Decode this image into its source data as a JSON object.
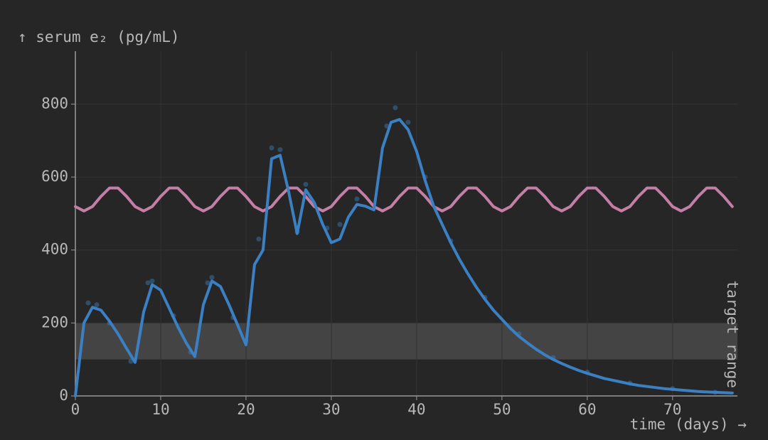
{
  "chart_data": {
    "type": "line",
    "y_label": "↑ serum e₂ (pg/mL)",
    "x_label": "time (days) →",
    "xlim": [
      0,
      77.6
    ],
    "ylim": [
      0,
      945
    ],
    "xticks": [
      0,
      10,
      20,
      30,
      40,
      50,
      60,
      70
    ],
    "yticks": [
      0,
      200,
      400,
      600,
      800
    ],
    "grid": true,
    "band": {
      "from": 100,
      "to": 200,
      "label": "target range",
      "color": "#4a4a4a"
    },
    "x": [
      0,
      1,
      2,
      3,
      4,
      5,
      6,
      7,
      8,
      9,
      10,
      11,
      12,
      13,
      14,
      15,
      16,
      17,
      18,
      19,
      20,
      21,
      22,
      23,
      24,
      25,
      26,
      27,
      28,
      29,
      30,
      31,
      32,
      33,
      34,
      35,
      36,
      37,
      38,
      39,
      40,
      41,
      42,
      43,
      44,
      45,
      46,
      47,
      48,
      49,
      50,
      51,
      52,
      53,
      54,
      55,
      56,
      57,
      58,
      59,
      60,
      61,
      62,
      63,
      64,
      65,
      66,
      67,
      68,
      69,
      70,
      71,
      72,
      73,
      74,
      75,
      76,
      77
    ],
    "series": [
      {
        "color": "#c47fa6",
        "values": [
          519,
          507,
          519,
          547,
          570,
          570,
          547,
          519,
          507,
          519,
          547,
          570,
          570,
          547,
          519,
          507,
          519,
          547,
          570,
          570,
          547,
          519,
          507,
          519,
          547,
          570,
          570,
          547,
          519,
          507,
          519,
          547,
          570,
          570,
          547,
          519,
          507,
          519,
          547,
          570,
          570,
          547,
          519,
          507,
          519,
          547,
          570,
          570,
          547,
          519,
          507,
          519,
          547,
          570,
          570,
          547,
          519,
          507,
          519,
          547,
          570,
          570,
          547,
          519,
          507,
          519,
          547,
          570,
          570,
          547,
          519,
          507,
          519,
          547,
          570,
          570,
          547,
          519
        ]
      },
      {
        "color": "#3b80c3",
        "values": [
          0,
          200,
          243,
          235,
          205,
          170,
          130,
          92,
          230,
          305,
          290,
          240,
          190,
          145,
          108,
          250,
          315,
          300,
          250,
          195,
          140,
          360,
          400,
          650,
          660,
          560,
          445,
          565,
          530,
          470,
          420,
          430,
          490,
          525,
          520,
          510,
          680,
          750,
          758,
          730,
          670,
          590,
          520,
          470,
          420,
          375,
          335,
          298,
          265,
          235,
          210,
          185,
          163,
          145,
          128,
          113,
          100,
          89,
          79,
          70,
          62,
          55,
          48,
          43,
          38,
          33,
          29,
          26,
          23,
          20,
          18,
          16,
          14,
          12,
          11,
          10,
          9,
          8
        ]
      }
    ],
    "samples": {
      "color": "#3b80c3",
      "x": [
        1.5,
        2.5,
        4,
        6.5,
        8.5,
        9,
        11.5,
        13.5,
        15.5,
        16,
        18.5,
        20,
        21.5,
        23,
        24,
        26,
        27,
        29.5,
        31,
        33,
        36.5,
        37.5,
        39,
        41,
        44,
        48,
        52,
        56,
        60,
        65,
        70,
        75
      ],
      "values": [
        255,
        250,
        200,
        95,
        310,
        315,
        220,
        120,
        310,
        325,
        215,
        150,
        430,
        680,
        675,
        450,
        580,
        460,
        470,
        540,
        740,
        790,
        750,
        600,
        425,
        270,
        170,
        105,
        65,
        35,
        20,
        10
      ]
    }
  }
}
